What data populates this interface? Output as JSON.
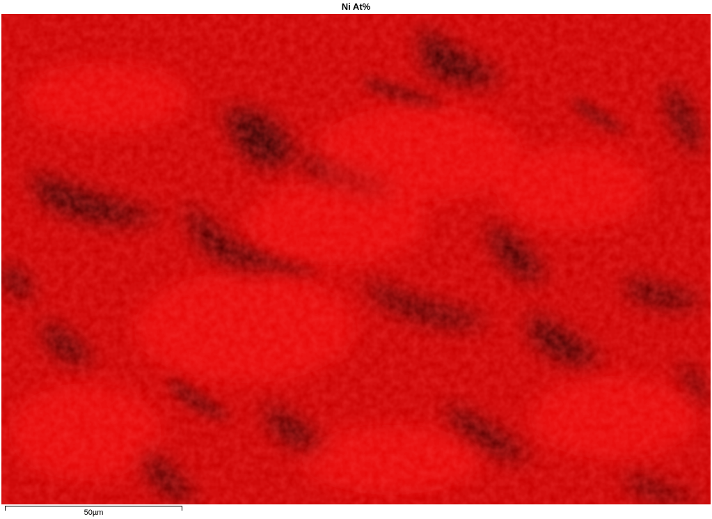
{
  "title": "Ni At%",
  "scale_bar": {
    "label": "50µm"
  },
  "map": {
    "element": "Ni",
    "color": "#e00000"
  }
}
